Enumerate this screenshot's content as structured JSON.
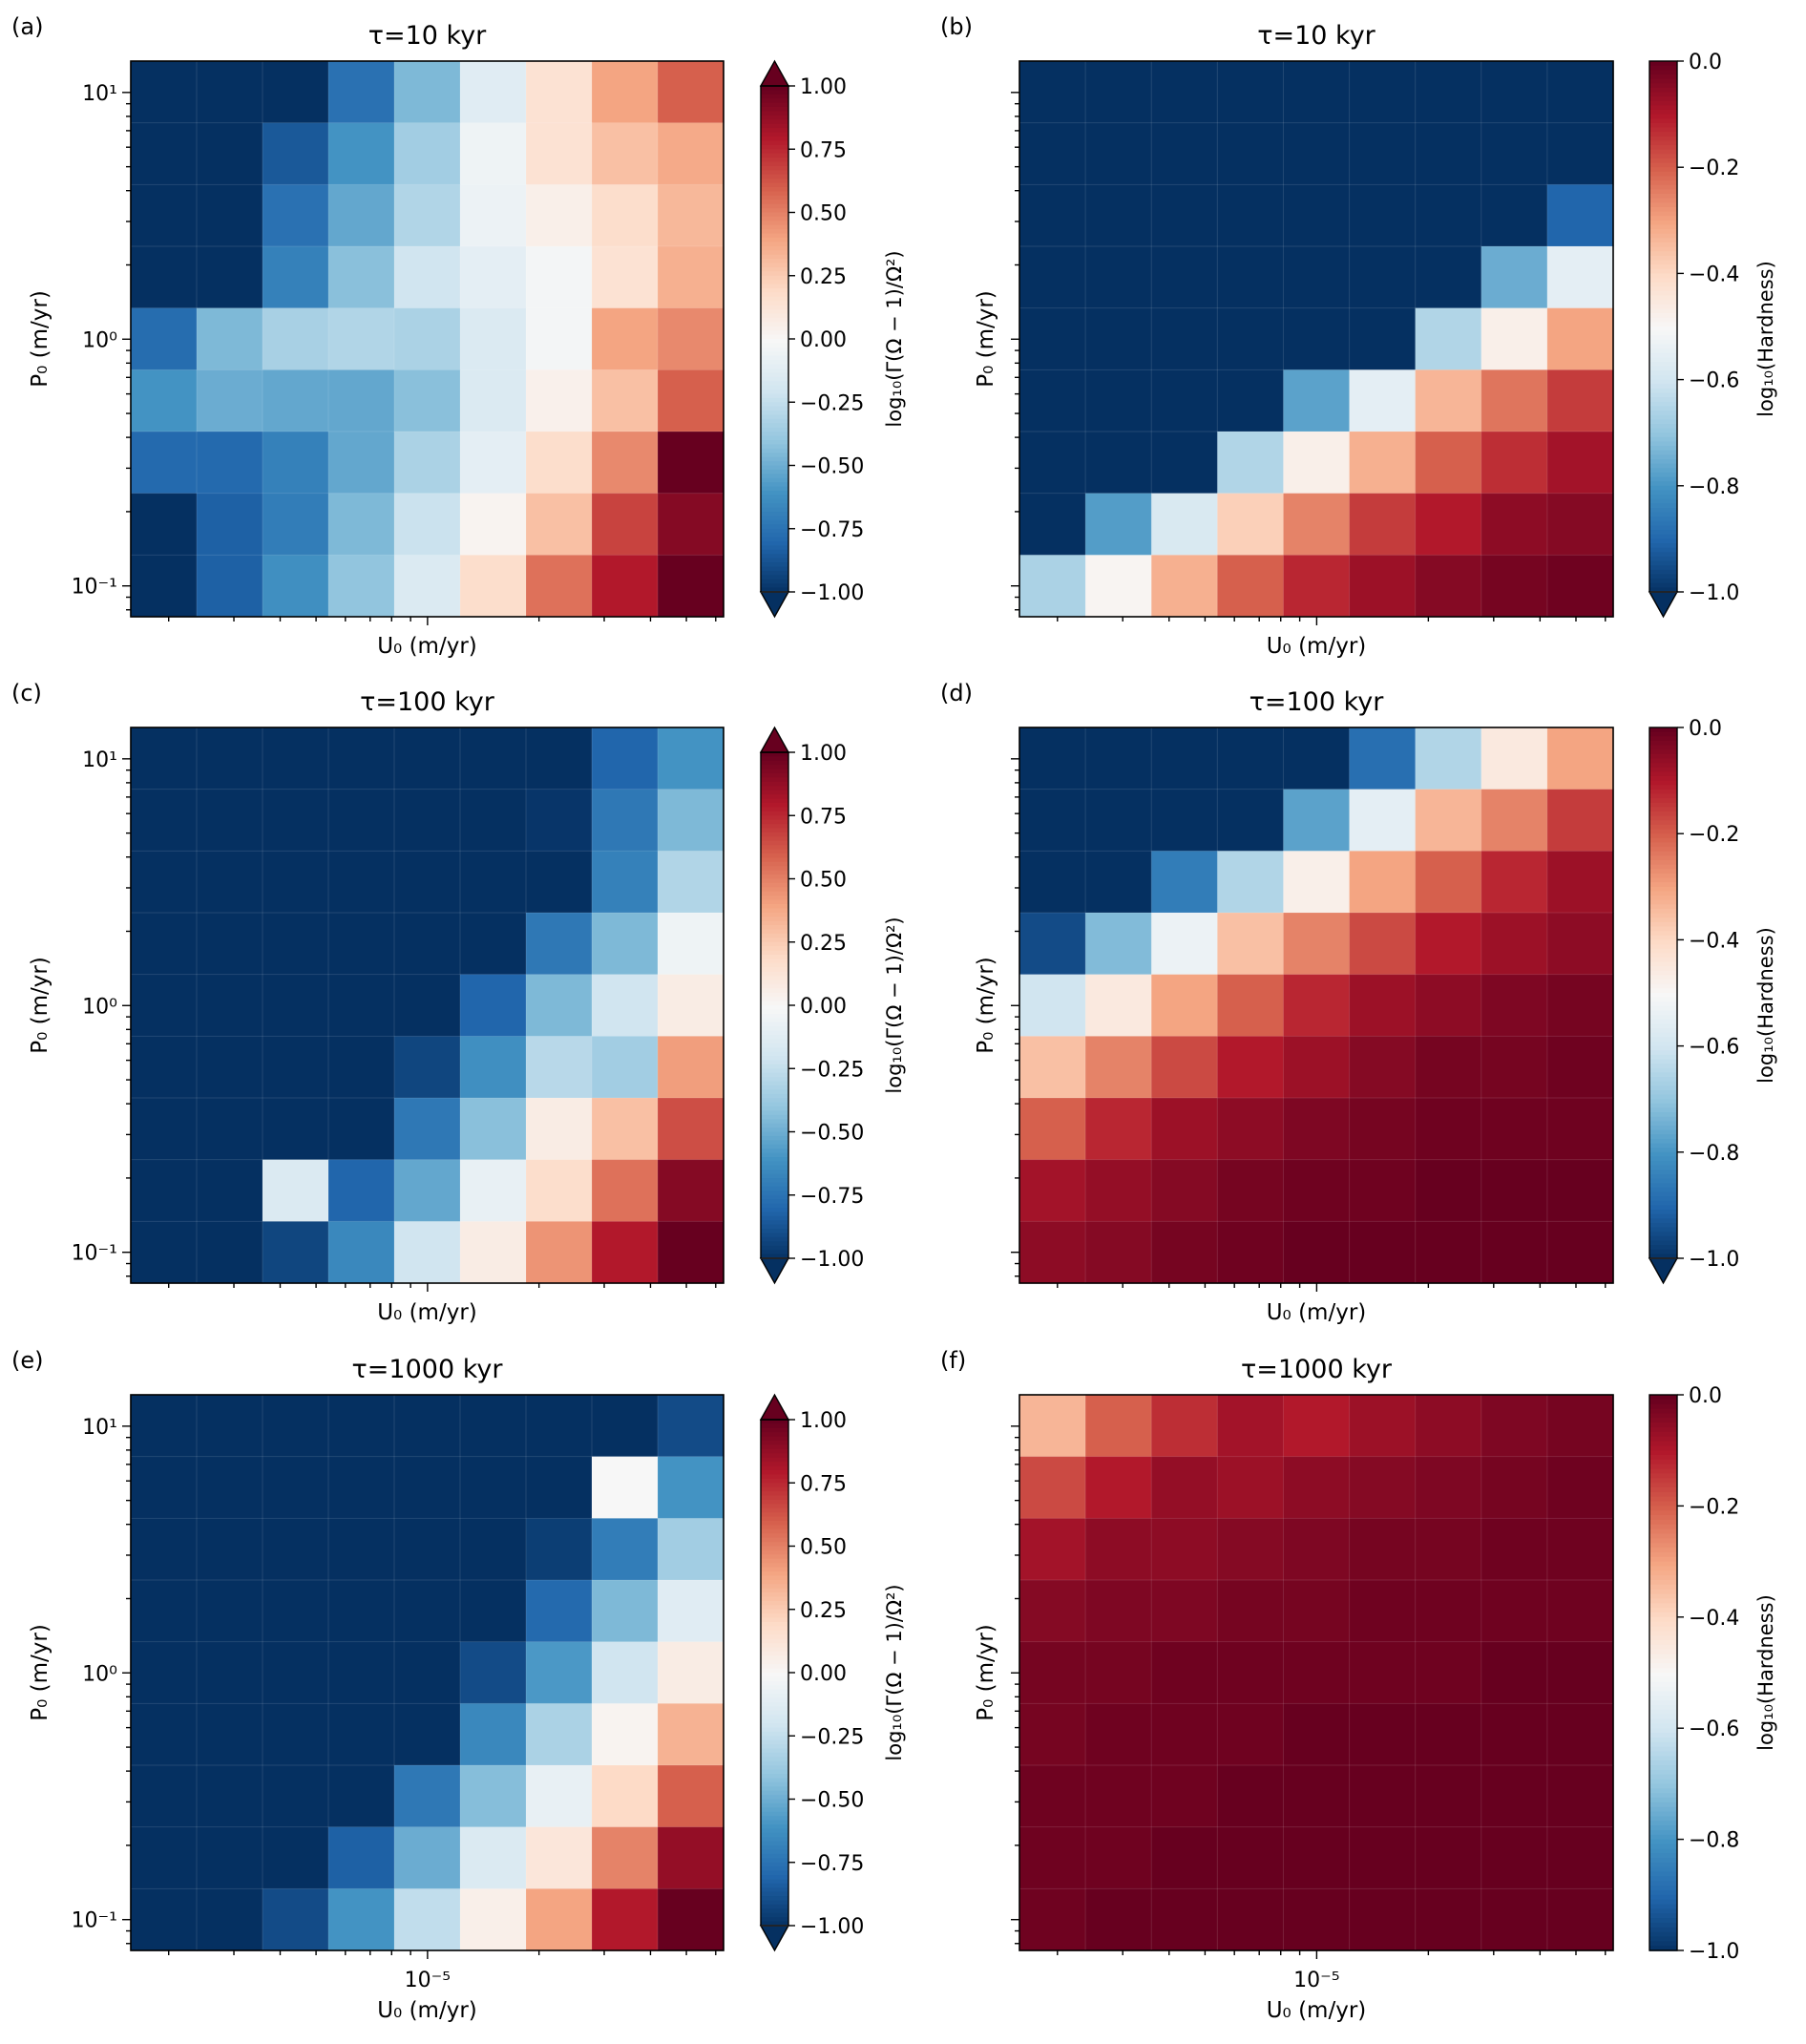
{
  "chart_data": [
    {
      "type": "heatmap",
      "panel_label": "(a)",
      "title": "τ=10 kyr",
      "xlabel": "U₀ (m/yr)",
      "ylabel": "P₀ (m/yr)",
      "x_scale": "log",
      "y_scale": "log",
      "xlim": [
        1.58e-06,
        6.3e-05
      ],
      "ylim": [
        0.075,
        13.4
      ],
      "x_tick_labels": [],
      "y_tick_labels": [
        "10¹",
        "10⁰",
        "10⁻¹"
      ],
      "y_ticks": [
        10,
        1,
        0.1
      ],
      "colormap": "RdBu_r",
      "clim": [
        -1.0,
        1.0
      ],
      "colorbar_extend": "both",
      "colorbar_label": "log₁₀(Γ(Ω − 1)/Ω²)",
      "colorbar_ticks": [
        1.0,
        0.75,
        0.5,
        0.25,
        0.0,
        -0.25,
        -0.5,
        -0.75,
        -1.0
      ],
      "colorbar_tick_labels": [
        "1.00",
        "0.75",
        "0.50",
        "0.25",
        "0.00",
        "−0.25",
        "−0.50",
        "−0.75",
        "−1.00"
      ],
      "grid_rows_top_to_bottom": [
        [
          -1,
          -1,
          -1,
          -0.75,
          -0.45,
          -0.12,
          0.15,
          0.4,
          0.6
        ],
        [
          -1,
          -1,
          -0.85,
          -0.6,
          -0.35,
          -0.05,
          0.15,
          0.3,
          0.38
        ],
        [
          -1,
          -1,
          -0.75,
          -0.52,
          -0.3,
          -0.06,
          0.06,
          0.18,
          0.33
        ],
        [
          -1,
          -1,
          -0.68,
          -0.42,
          -0.2,
          -0.1,
          -0.02,
          0.15,
          0.36
        ],
        [
          -0.77,
          -0.45,
          -0.33,
          -0.3,
          -0.32,
          -0.15,
          -0.02,
          0.4,
          0.48
        ],
        [
          -0.6,
          -0.5,
          -0.52,
          -0.52,
          -0.42,
          -0.15,
          0.05,
          0.3,
          0.6
        ],
        [
          -0.78,
          -0.78,
          -0.68,
          -0.52,
          -0.32,
          -0.1,
          0.18,
          0.48,
          1.0
        ],
        [
          -1,
          -0.82,
          -0.7,
          -0.45,
          -0.22,
          0.03,
          0.3,
          0.68,
          0.92
        ],
        [
          -1,
          -0.82,
          -0.62,
          -0.4,
          -0.15,
          0.18,
          0.55,
          0.8,
          1.0
        ]
      ]
    },
    {
      "type": "heatmap",
      "panel_label": "(b)",
      "title": "τ=10 kyr",
      "xlabel": "U₀ (m/yr)",
      "ylabel": "P₀ (m/yr)",
      "x_scale": "log",
      "y_scale": "log",
      "xlim": [
        1.58e-06,
        6.3e-05
      ],
      "ylim": [
        0.075,
        13.4
      ],
      "x_tick_labels": [],
      "y_tick_labels": [],
      "y_ticks": [
        10,
        1,
        0.1
      ],
      "colormap": "RdBu_r",
      "clim": [
        -1.0,
        0.0
      ],
      "colorbar_extend": "min",
      "colorbar_label": "log₁₀(Hardness)",
      "colorbar_ticks": [
        0.0,
        -0.2,
        -0.4,
        -0.6,
        -0.8,
        -1.0
      ],
      "colorbar_tick_labels": [
        "0.0",
        "−0.2",
        "−0.4",
        "−0.6",
        "−0.8",
        "−1.0"
      ],
      "grid_rows_top_to_bottom": [
        [
          -1,
          -1,
          -1,
          -1,
          -1,
          -1,
          -1,
          -1,
          -1
        ],
        [
          -1,
          -1,
          -1,
          -1,
          -1,
          -1,
          -1,
          -1,
          -1
        ],
        [
          -1,
          -1,
          -1,
          -1,
          -1,
          -1,
          -1,
          -1,
          -0.9
        ],
        [
          -1,
          -1,
          -1,
          -1,
          -1,
          -1,
          -1,
          -0.75,
          -0.55
        ],
        [
          -1,
          -1,
          -1,
          -1,
          -1,
          -1,
          -0.65,
          -0.47,
          -0.3
        ],
        [
          -1,
          -1,
          -1,
          -1,
          -0.77,
          -0.55,
          -0.33,
          -0.23,
          -0.15
        ],
        [
          -1,
          -1,
          -1,
          -0.65,
          -0.47,
          -0.32,
          -0.2,
          -0.13,
          -0.08
        ],
        [
          -1,
          -0.78,
          -0.58,
          -0.38,
          -0.25,
          -0.15,
          -0.1,
          -0.05,
          -0.04
        ],
        [
          -0.66,
          -0.49,
          -0.32,
          -0.2,
          -0.12,
          -0.07,
          -0.04,
          -0.02,
          -0.01
        ]
      ]
    },
    {
      "type": "heatmap",
      "panel_label": "(c)",
      "title": "τ=100 kyr",
      "xlabel": "U₀ (m/yr)",
      "ylabel": "P₀ (m/yr)",
      "x_scale": "log",
      "y_scale": "log",
      "xlim": [
        1.58e-06,
        6.3e-05
      ],
      "ylim": [
        0.075,
        13.4
      ],
      "x_tick_labels": [],
      "y_tick_labels": [
        "10¹",
        "10⁰",
        "10⁻¹"
      ],
      "y_ticks": [
        10,
        1,
        0.1
      ],
      "colormap": "RdBu_r",
      "clim": [
        -1.0,
        1.0
      ],
      "colorbar_extend": "both",
      "colorbar_label": "log₁₀(Γ(Ω − 1)/Ω²)",
      "colorbar_ticks": [
        1.0,
        0.75,
        0.5,
        0.25,
        0.0,
        -0.25,
        -0.5,
        -0.75,
        -1.0
      ],
      "colorbar_tick_labels": [
        "1.00",
        "0.75",
        "0.50",
        "0.25",
        "0.00",
        "−0.25",
        "−0.50",
        "−0.75",
        "−1.00"
      ],
      "grid_rows_top_to_bottom": [
        [
          -1,
          -1,
          -1,
          -1,
          -1,
          -1,
          -1,
          -0.8,
          -0.6
        ],
        [
          -1,
          -1,
          -1,
          -1,
          -1,
          -1,
          -0.98,
          -0.72,
          -0.45
        ],
        [
          -1,
          -1,
          -1,
          -1,
          -1,
          -1,
          -1,
          -0.68,
          -0.3
        ],
        [
          -1,
          -1,
          -1,
          -1,
          -1,
          -1,
          -0.72,
          -0.45,
          -0.05
        ],
        [
          -1,
          -1,
          -1,
          -1,
          -1,
          -0.8,
          -0.45,
          -0.2,
          0.08
        ],
        [
          -1,
          -1,
          -1,
          -1,
          -0.92,
          -0.62,
          -0.28,
          -0.35,
          0.42
        ],
        [
          -1,
          -1,
          -1,
          -1,
          -0.72,
          -0.42,
          0.08,
          0.3,
          0.65
        ],
        [
          -1,
          -1,
          -0.15,
          -0.8,
          -0.52,
          -0.08,
          0.18,
          0.55,
          0.92
        ],
        [
          -1,
          -1,
          -0.92,
          -0.65,
          -0.2,
          0.08,
          0.45,
          0.8,
          1.0
        ]
      ]
    },
    {
      "type": "heatmap",
      "panel_label": "(d)",
      "title": "τ=100 kyr",
      "xlabel": "U₀ (m/yr)",
      "ylabel": "P₀ (m/yr)",
      "x_scale": "log",
      "y_scale": "log",
      "xlim": [
        1.58e-06,
        6.3e-05
      ],
      "ylim": [
        0.075,
        13.4
      ],
      "x_tick_labels": [],
      "y_tick_labels": [],
      "y_ticks": [
        10,
        1,
        0.1
      ],
      "colormap": "RdBu_r",
      "clim": [
        -1.0,
        0.0
      ],
      "colorbar_extend": "min",
      "colorbar_label": "log₁₀(Hardness)",
      "colorbar_ticks": [
        0.0,
        -0.2,
        -0.4,
        -0.6,
        -0.8,
        -1.0
      ],
      "colorbar_tick_labels": [
        "0.0",
        "−0.2",
        "−0.4",
        "−0.6",
        "−0.8",
        "−1.0"
      ],
      "grid_rows_top_to_bottom": [
        [
          -1,
          -1,
          -1,
          -1,
          -1,
          -0.88,
          -0.65,
          -0.45,
          -0.3
        ],
        [
          -1,
          -1,
          -1,
          -1,
          -0.77,
          -0.55,
          -0.33,
          -0.25,
          -0.15
        ],
        [
          -1,
          -1,
          -0.85,
          -0.65,
          -0.47,
          -0.3,
          -0.2,
          -0.12,
          -0.07
        ],
        [
          -0.95,
          -0.72,
          -0.53,
          -0.35,
          -0.25,
          -0.17,
          -0.1,
          -0.07,
          -0.05
        ],
        [
          -0.6,
          -0.45,
          -0.3,
          -0.2,
          -0.12,
          -0.07,
          -0.05,
          -0.03,
          -0.02
        ],
        [
          -0.35,
          -0.25,
          -0.17,
          -0.1,
          -0.07,
          -0.04,
          -0.02,
          -0.02,
          -0.01
        ],
        [
          -0.2,
          -0.12,
          -0.07,
          -0.05,
          -0.03,
          -0.02,
          -0.01,
          -0.01,
          -0.01
        ],
        [
          -0.08,
          -0.06,
          -0.04,
          -0.02,
          -0.01,
          -0.01,
          0,
          0,
          0
        ],
        [
          -0.05,
          -0.04,
          -0.02,
          -0.01,
          0,
          0,
          0,
          0,
          0
        ]
      ]
    },
    {
      "type": "heatmap",
      "panel_label": "(e)",
      "title": "τ=1000 kyr",
      "xlabel": "U₀ (m/yr)",
      "ylabel": "P₀ (m/yr)",
      "x_scale": "log",
      "y_scale": "log",
      "xlim": [
        1.58e-06,
        6.3e-05
      ],
      "ylim": [
        0.075,
        13.4
      ],
      "x_tick_labels": [
        "10⁻⁵"
      ],
      "x_ticks": [
        1e-05
      ],
      "y_tick_labels": [
        "10¹",
        "10⁰",
        "10⁻¹"
      ],
      "y_ticks": [
        10,
        1,
        0.1
      ],
      "colormap": "RdBu_r",
      "clim": [
        -1.0,
        1.0
      ],
      "colorbar_extend": "both",
      "colorbar_label": "log₁₀(Γ(Ω − 1)/Ω²)",
      "colorbar_ticks": [
        1.0,
        0.75,
        0.5,
        0.25,
        0.0,
        -0.25,
        -0.5,
        -0.75,
        -1.0
      ],
      "colorbar_tick_labels": [
        "1.00",
        "0.75",
        "0.50",
        "0.25",
        "0.00",
        "−0.25",
        "−0.50",
        "−0.75",
        "−1.00"
      ],
      "grid_rows_top_to_bottom": [
        [
          -1,
          -1,
          -1,
          -1,
          -1,
          -1,
          -1,
          -1,
          -0.9
        ],
        [
          -1,
          -1,
          -1,
          -1,
          -1,
          -1,
          -1,
          0.0,
          -0.6
        ],
        [
          -1,
          -1,
          -1,
          -1,
          -1,
          -1,
          -0.95,
          -0.7,
          -0.35
        ],
        [
          -1,
          -1,
          -1,
          -1,
          -1,
          -1,
          -0.78,
          -0.45,
          -0.12
        ],
        [
          -1,
          -1,
          -1,
          -1,
          -1,
          -0.9,
          -0.58,
          -0.2,
          0.08
        ],
        [
          -1,
          -1,
          -1,
          -1,
          -1,
          -0.65,
          -0.32,
          0.03,
          0.35
        ],
        [
          -1,
          -1,
          -1,
          -1,
          -0.72,
          -0.43,
          -0.08,
          0.2,
          0.6
        ],
        [
          -1,
          -1,
          -1,
          -0.82,
          -0.5,
          -0.15,
          0.12,
          0.5,
          0.88
        ],
        [
          -1,
          -1,
          -0.9,
          -0.6,
          -0.25,
          0.06,
          0.4,
          0.8,
          1.0
        ]
      ]
    },
    {
      "type": "heatmap",
      "panel_label": "(f)",
      "title": "τ=1000 kyr",
      "xlabel": "U₀ (m/yr)",
      "ylabel": "P₀ (m/yr)",
      "x_scale": "log",
      "y_scale": "log",
      "xlim": [
        1.58e-06,
        6.3e-05
      ],
      "ylim": [
        0.075,
        13.4
      ],
      "x_tick_labels": [
        "10⁻⁵"
      ],
      "x_ticks": [
        1e-05
      ],
      "y_tick_labels": [],
      "y_ticks": [
        10,
        1,
        0.1
      ],
      "colormap": "RdBu_r",
      "clim": [
        -1.0,
        0.0
      ],
      "colorbar_extend": "neither",
      "colorbar_label": "log₁₀(Hardness)",
      "colorbar_ticks": [
        0.0,
        -0.2,
        -0.4,
        -0.6,
        -0.8,
        -1.0
      ],
      "colorbar_tick_labels": [
        "0.0",
        "−0.2",
        "−0.4",
        "−0.6",
        "−0.8",
        "−1.0"
      ],
      "grid_rows_top_to_bottom": [
        [
          -0.33,
          -0.2,
          -0.13,
          -0.08,
          -0.1,
          -0.07,
          -0.05,
          -0.03,
          -0.02
        ],
        [
          -0.17,
          -0.1,
          -0.06,
          -0.07,
          -0.05,
          -0.04,
          -0.03,
          -0.02,
          -0.01
        ],
        [
          -0.08,
          -0.05,
          -0.05,
          -0.04,
          -0.03,
          -0.02,
          -0.02,
          -0.01,
          -0.01
        ],
        [
          -0.04,
          -0.03,
          -0.03,
          -0.02,
          -0.02,
          -0.01,
          -0.01,
          -0.01,
          -0.01
        ],
        [
          -0.02,
          -0.02,
          -0.01,
          -0.01,
          -0.01,
          -0.01,
          -0.01,
          0,
          0
        ],
        [
          -0.02,
          -0.01,
          -0.01,
          -0.01,
          0,
          0,
          0,
          0,
          0
        ],
        [
          -0.01,
          -0.01,
          -0.01,
          0,
          0,
          0,
          0,
          0,
          0
        ],
        [
          -0.01,
          -0.01,
          0,
          0,
          0,
          0,
          0,
          0,
          0
        ],
        [
          -0.01,
          0,
          0,
          0,
          0,
          0,
          0,
          0,
          0
        ]
      ]
    }
  ]
}
